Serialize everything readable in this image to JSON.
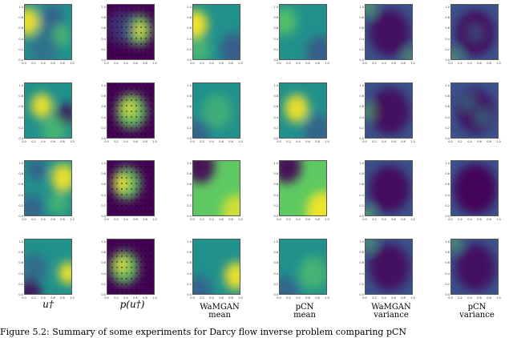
{
  "figure": {
    "column_labels": [
      {
        "text": "u†",
        "kind": "math"
      },
      {
        "text": "p(u†)",
        "kind": "math"
      },
      {
        "line1": "WaMGAN",
        "line2": "mean",
        "kind": "text"
      },
      {
        "line1": "pCN",
        "line2": "mean",
        "kind": "text"
      },
      {
        "line1": "WaMGAN",
        "line2": "variance",
        "kind": "text"
      },
      {
        "line1": "pCN",
        "line2": "variance",
        "kind": "text"
      }
    ],
    "tick_labels": [
      "0.0",
      "0.2",
      "0.4",
      "0.6",
      "0.8",
      "1.0"
    ],
    "caption": "Figure 5.2: Summary of some experiments for Darcy flow inverse problem comparing pCN",
    "colormap": [
      "#440154",
      "#3b528b",
      "#21918c",
      "#5ec962",
      "#fde725"
    ],
    "rows": 4,
    "observation_grid": 9
  }
}
